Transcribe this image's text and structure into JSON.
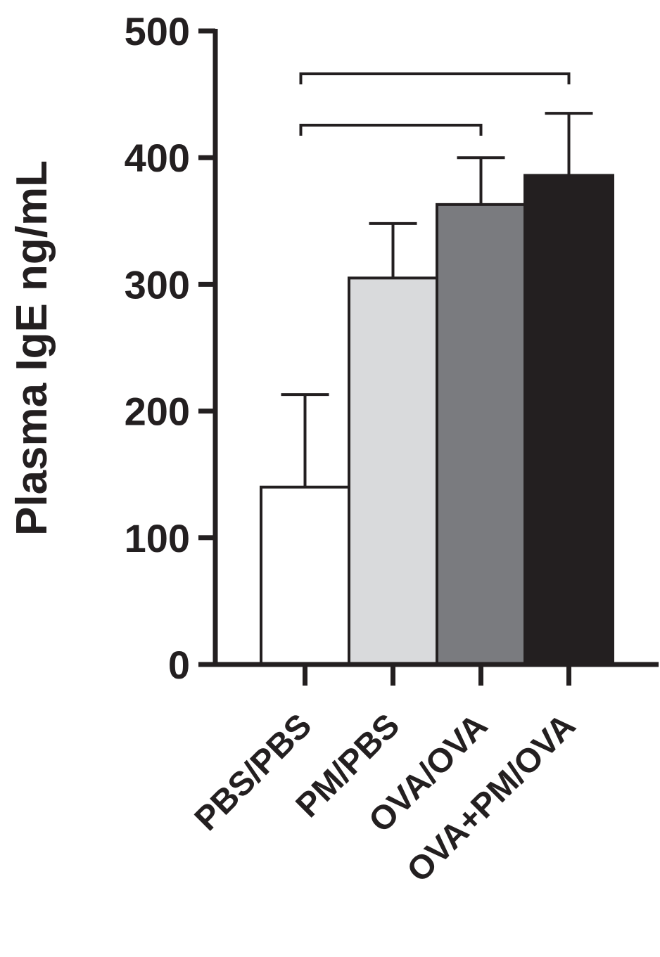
{
  "chart_data": {
    "type": "bar",
    "title": "",
    "xlabel": "",
    "ylabel": "Plasma IgE ng/mL",
    "ylim": [
      0,
      500
    ],
    "yticks": [
      0,
      100,
      200,
      300,
      400,
      500
    ],
    "yticks_labels": [
      "0",
      "100",
      "200",
      "300",
      "400",
      "500"
    ],
    "categories": [
      "PBS/PBS",
      "PM/PBS",
      "OVA/OVA",
      "OVA+PM/OVA"
    ],
    "values": [
      140,
      305,
      363,
      386
    ],
    "errors": [
      73,
      43,
      37,
      49
    ],
    "colors": [
      "#ffffff",
      "#d9dadc",
      "#7a7b7f",
      "#231f20"
    ],
    "grid": false,
    "legend": "none",
    "significance": [
      {
        "from": 0,
        "to": 2
      },
      {
        "from": 0,
        "to": 3
      }
    ]
  }
}
